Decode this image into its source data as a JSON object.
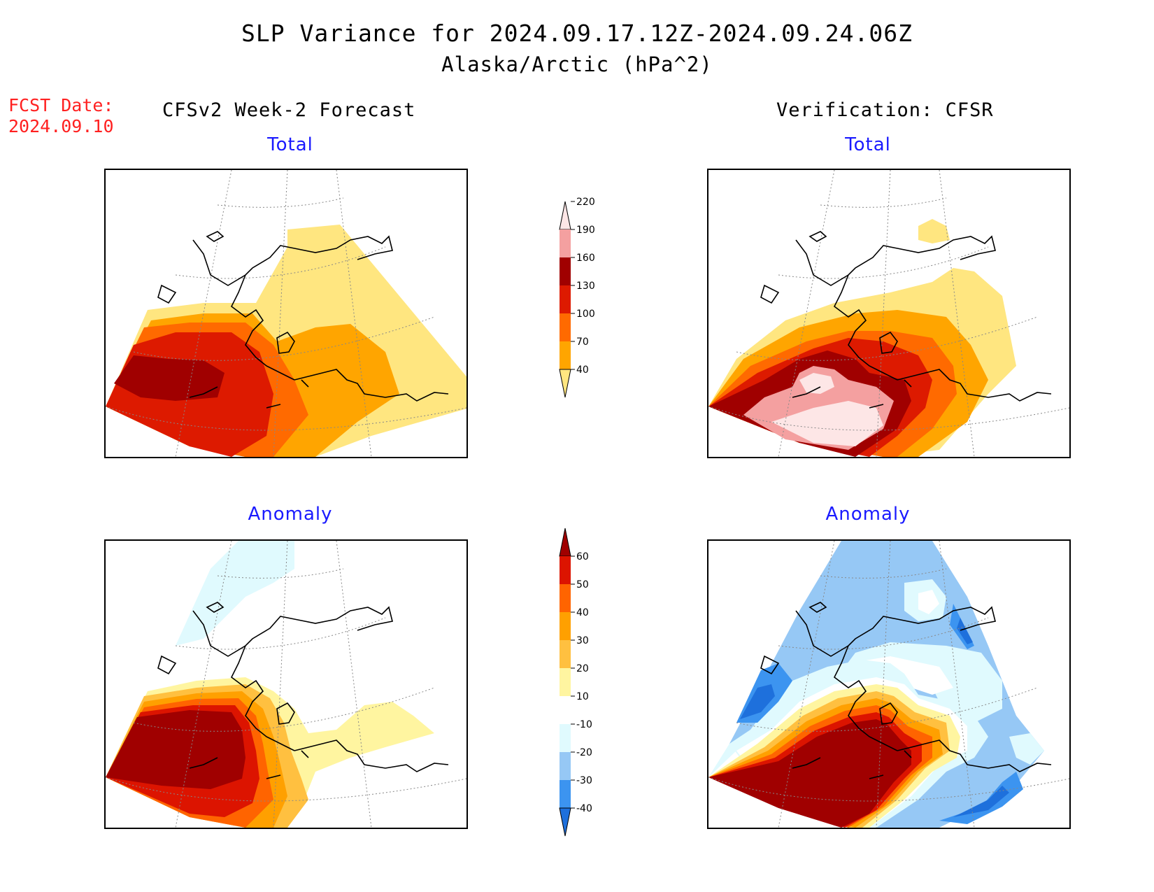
{
  "title": {
    "line1": "SLP Variance for 2024.09.17.12Z-2024.09.24.06Z",
    "line2": "Alaska/Arctic (hPa^2)"
  },
  "forecast_date": {
    "label": "FCST Date:",
    "value": "2024.09.10"
  },
  "columns": {
    "left": "CFSv2 Week-2 Forecast",
    "right": "Verification: CFSR"
  },
  "panels": {
    "top_left": {
      "subtitle": "Total"
    },
    "top_right": {
      "subtitle": "Total"
    },
    "bottom_left": {
      "subtitle": "Anomaly"
    },
    "bottom_right": {
      "subtitle": "Anomaly"
    }
  },
  "colorbars": {
    "total": {
      "levels": [
        "40",
        "70",
        "100",
        "130",
        "160",
        "190",
        "220"
      ],
      "colors": [
        "#ffe680",
        "#ffa500",
        "#ff6a00",
        "#dd1a00",
        "#a00000",
        "#f4a0a0",
        "#fde6e6"
      ]
    },
    "anomaly": {
      "levels": [
        "-40",
        "-30",
        "-20",
        "-10",
        "10",
        "20",
        "30",
        "40",
        "50",
        "60"
      ],
      "colors": [
        "#1e70dc",
        "#3c94f0",
        "#96c8f5",
        "#e0fafe",
        "#ffffff",
        "#fff5a0",
        "#ffc040",
        "#ffa000",
        "#ff6400",
        "#dc1400",
        "#a00000"
      ]
    }
  }
}
